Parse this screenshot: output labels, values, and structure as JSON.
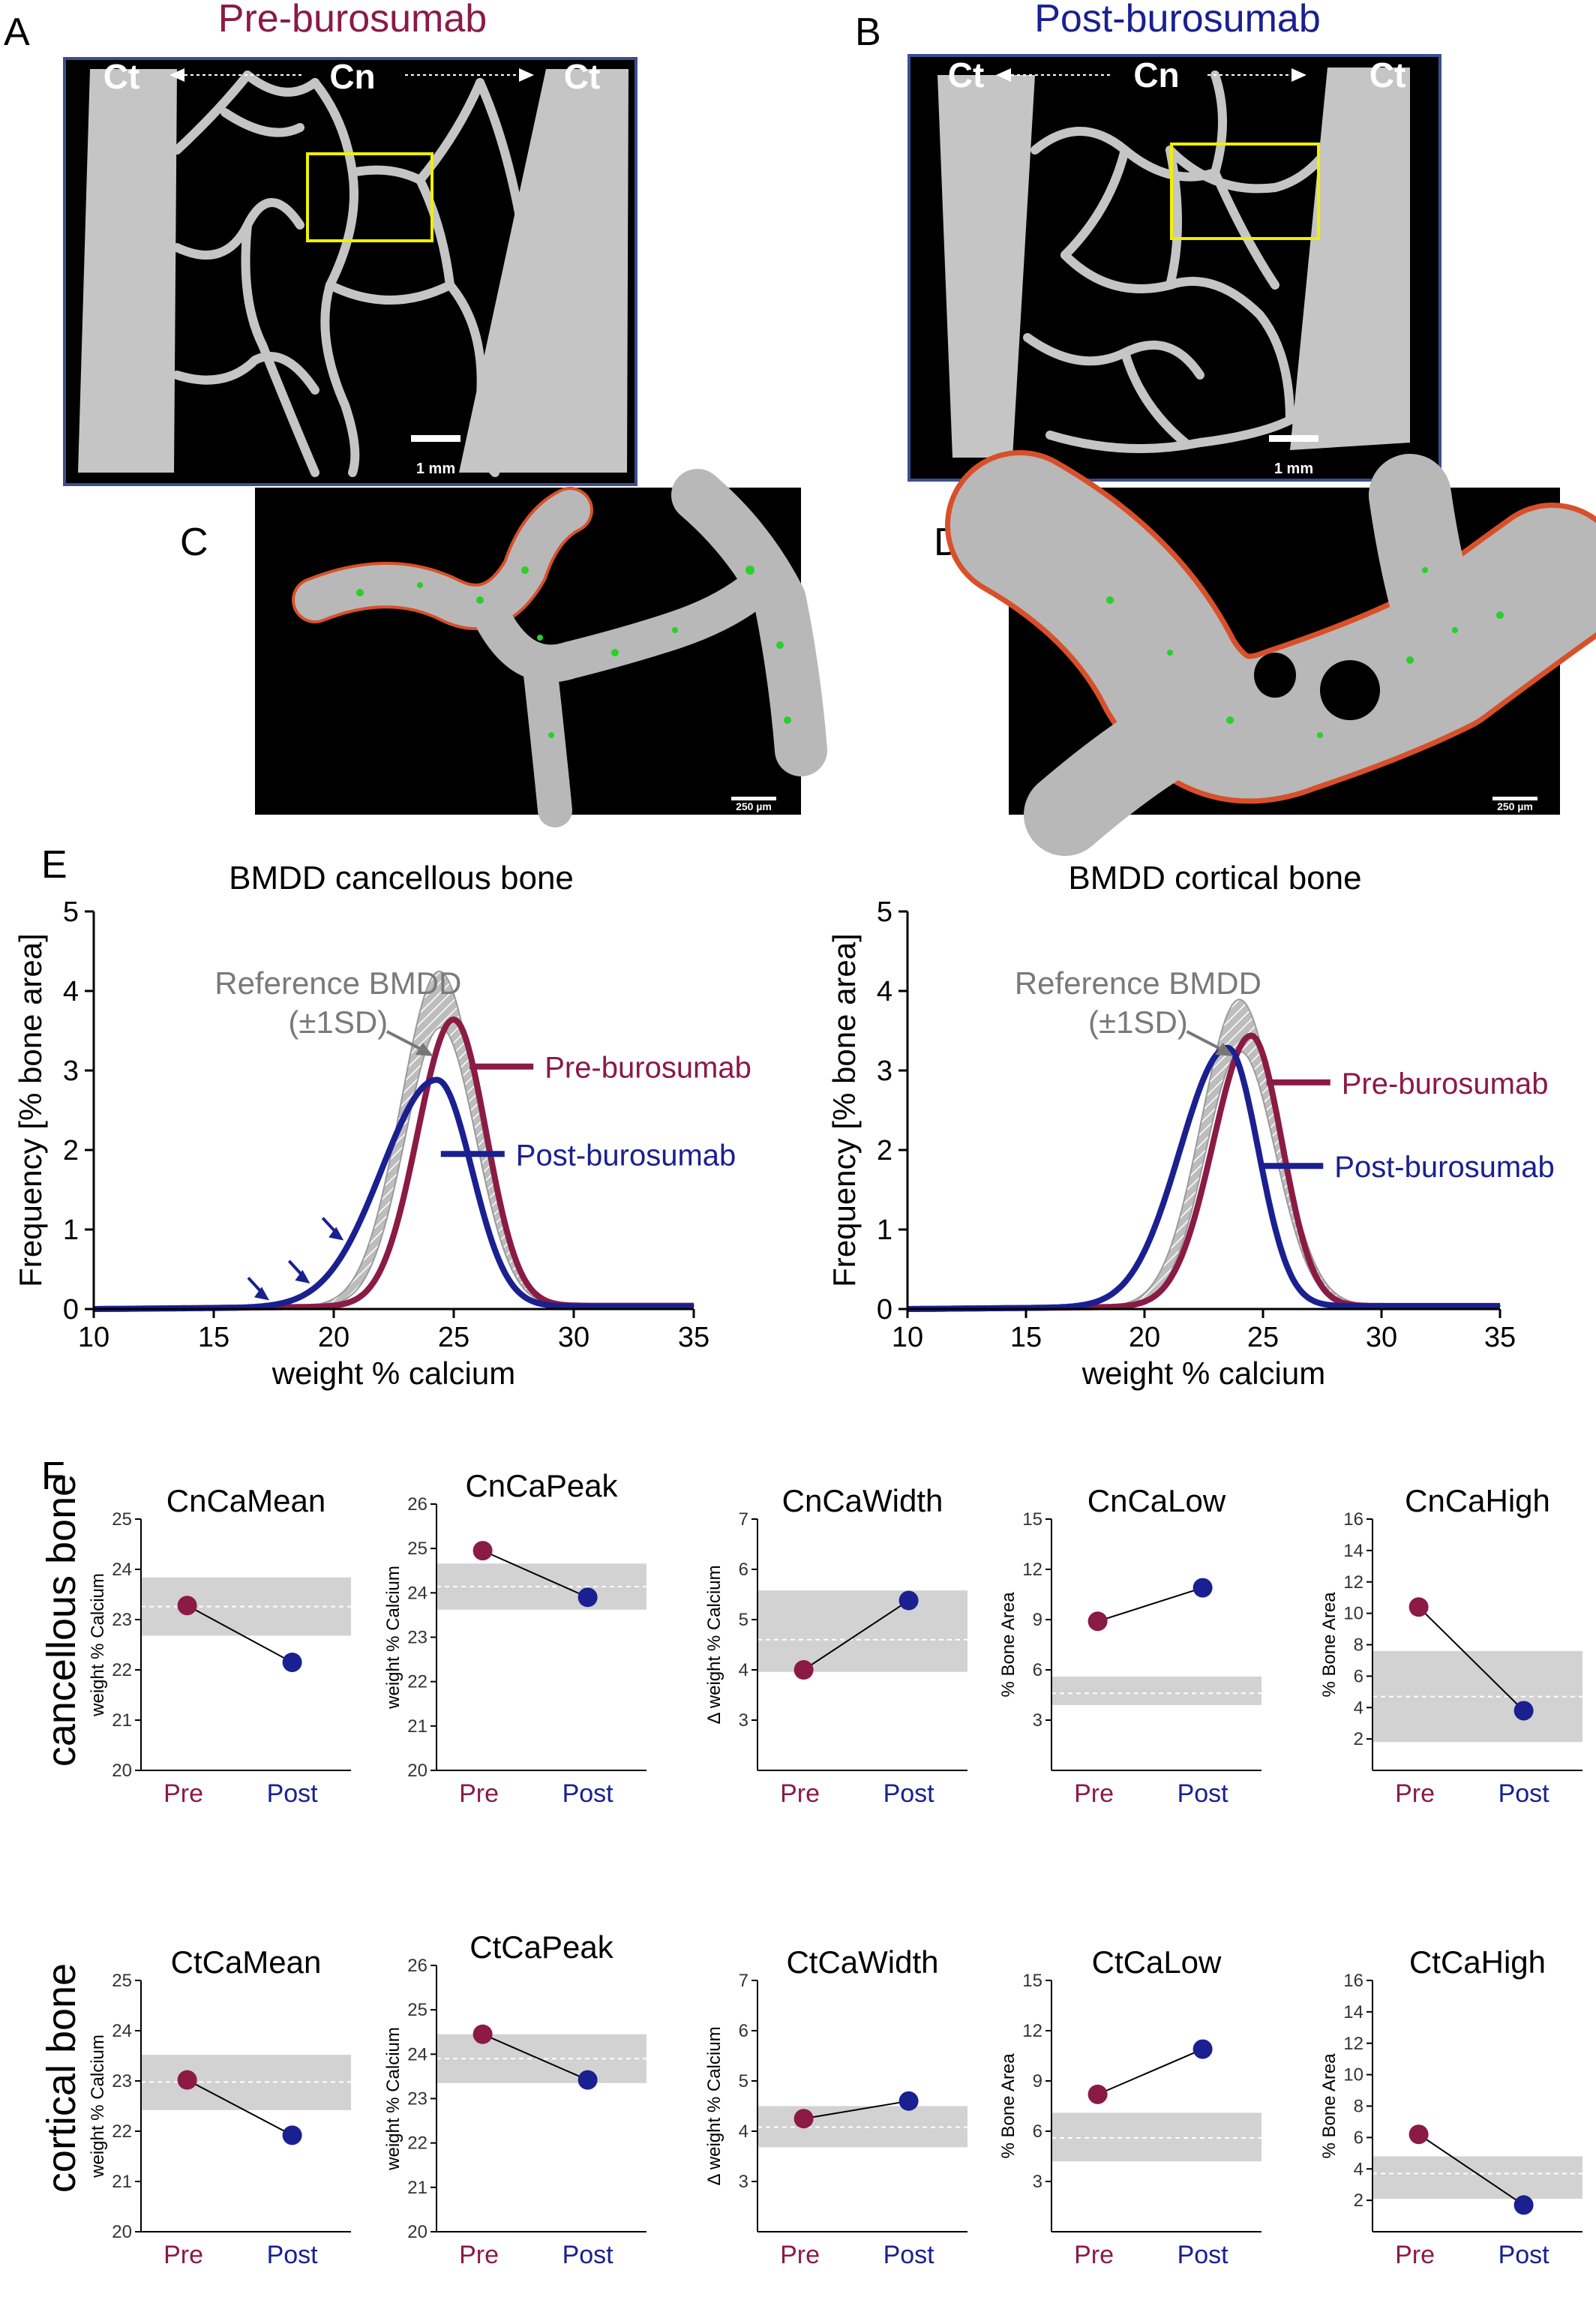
{
  "colors": {
    "pre": "#8b1a45",
    "post": "#1a2090",
    "ref": "#b8b8b8",
    "band": "#d2d2d2",
    "image_border": "#3b4f8f",
    "box": "#f0f000"
  },
  "panels": {
    "A": {
      "letter": "A",
      "title": "Pre-burosumab",
      "left_label": "Ct",
      "center_label": "Cn",
      "right_label": "Ct",
      "scale": "1 mm"
    },
    "B": {
      "letter": "B",
      "title": "Post-burosumab",
      "left_label": "Ct",
      "center_label": "Cn",
      "right_label": "Ct",
      "scale": "1 mm"
    },
    "C": {
      "letter": "C",
      "scale": "250 µm"
    },
    "D": {
      "letter": "D",
      "scale": "250 µm"
    },
    "E": {
      "letter": "E"
    },
    "F": {
      "letter": "F",
      "row_cancellous": "cancellous bone",
      "row_cortical": "cortical bone"
    }
  },
  "chart_data": [
    {
      "type": "line",
      "title": "BMDD cancellous bone",
      "xlabel": "weight % calcium",
      "ylabel": "Frequency [% bone area]",
      "xlim": [
        10,
        35
      ],
      "ylim": [
        0,
        5
      ],
      "xticks": [
        "10",
        "15",
        "20",
        "25",
        "30",
        "35"
      ],
      "yticks": [
        "0",
        "1",
        "2",
        "3",
        "4",
        "5"
      ],
      "reference_label": [
        "Reference BMDD",
        "(±1SD)"
      ],
      "reference_band": {
        "center": 24.4,
        "sd": 1.6,
        "peak_upper": 4.2,
        "peak_lower": 3.5
      },
      "series": [
        {
          "name": "Pre-burosumab",
          "center": 25.0,
          "sd_left": 1.5,
          "sd_right": 1.35,
          "peak": 3.6
        },
        {
          "name": "Post-burosumab",
          "center": 24.3,
          "sd_left": 2.3,
          "sd_right": 1.45,
          "peak": 2.85
        }
      ],
      "arrows_at_x": [
        17.5,
        19.2,
        20.6
      ]
    },
    {
      "type": "line",
      "title": "BMDD cortical bone",
      "xlabel": "weight % calcium",
      "ylabel": "Frequency [% bone area]",
      "xlim": [
        10,
        35
      ],
      "ylim": [
        0,
        5
      ],
      "xticks": [
        "10",
        "15",
        "20",
        "25",
        "30",
        "35"
      ],
      "yticks": [
        "0",
        "1",
        "2",
        "3",
        "4",
        "5"
      ],
      "reference_label": [
        "Reference BMDD",
        "(±1SD)"
      ],
      "reference_band": {
        "center": 24.0,
        "sd": 1.6,
        "peak_upper": 3.85,
        "peak_lower": 3.2
      },
      "series": [
        {
          "name": "Pre-burosumab",
          "center": 24.5,
          "sd_left": 1.6,
          "sd_right": 1.3,
          "peak": 3.4
        },
        {
          "name": "Post-burosumab",
          "center": 23.5,
          "sd_left": 2.0,
          "sd_right": 1.3,
          "peak": 3.25
        }
      ]
    },
    {
      "type": "scatter",
      "title": "CnCaMean",
      "ylabel": "weight % Calcium",
      "categories": [
        "Pre",
        "Post"
      ],
      "values": [
        23.28,
        22.15
      ],
      "ref_mean": 23.26,
      "ref_band": [
        22.68,
        23.84
      ],
      "ylim": [
        20,
        25
      ],
      "yticks": [
        "20",
        "21",
        "22",
        "23",
        "24",
        "25"
      ]
    },
    {
      "type": "scatter",
      "title": "CnCaPeak",
      "ylabel": "weight % Calcium",
      "categories": [
        "Pre",
        "Post"
      ],
      "values": [
        24.95,
        23.9
      ],
      "ref_mean": 24.14,
      "ref_band": [
        23.62,
        24.66
      ],
      "ylim": [
        20,
        26
      ],
      "yticks": [
        "20",
        "21",
        "22",
        "23",
        "24",
        "25",
        "26"
      ]
    },
    {
      "type": "scatter",
      "title": "CnCaWidth",
      "ylabel": "Δ weight % Calcium",
      "categories": [
        "Pre",
        "Post"
      ],
      "values": [
        4.0,
        5.38
      ],
      "ref_mean": 4.6,
      "ref_band": [
        3.96,
        5.58
      ],
      "ylim": [
        2,
        7
      ],
      "yticks": [
        "3",
        "4",
        "5",
        "6",
        "7"
      ]
    },
    {
      "type": "scatter",
      "title": "CnCaLow",
      "ylabel": "% Bone Area",
      "categories": [
        "Pre",
        "Post"
      ],
      "values": [
        8.9,
        10.9
      ],
      "ref_mean": 4.6,
      "ref_band": [
        3.9,
        5.6
      ],
      "ylim": [
        0,
        15
      ],
      "yticks": [
        "3",
        "6",
        "9",
        "12",
        "15"
      ]
    },
    {
      "type": "scatter",
      "title": "CnCaHigh",
      "ylabel": "% Bone Area",
      "categories": [
        "Pre",
        "Post"
      ],
      "values": [
        10.4,
        3.8
      ],
      "ref_mean": 4.7,
      "ref_band": [
        1.8,
        7.6
      ],
      "ylim": [
        0,
        16
      ],
      "yticks": [
        "2",
        "4",
        "6",
        "8",
        "10",
        "12",
        "14",
        "16"
      ]
    },
    {
      "type": "scatter",
      "title": "CtCaMean",
      "ylabel": "weight % Calcium",
      "categories": [
        "Pre",
        "Post"
      ],
      "values": [
        23.02,
        21.92
      ],
      "ref_mean": 22.98,
      "ref_band": [
        22.42,
        23.52
      ],
      "ylim": [
        20,
        25
      ],
      "yticks": [
        "20",
        "21",
        "22",
        "23",
        "24",
        "25"
      ]
    },
    {
      "type": "scatter",
      "title": "CtCaPeak",
      "ylabel": "weight % Calcium",
      "categories": [
        "Pre",
        "Post"
      ],
      "values": [
        24.45,
        23.42
      ],
      "ref_mean": 23.9,
      "ref_band": [
        23.35,
        24.45
      ],
      "ylim": [
        20,
        26
      ],
      "yticks": [
        "20",
        "21",
        "22",
        "23",
        "24",
        "25",
        "26"
      ]
    },
    {
      "type": "scatter",
      "title": "CtCaWidth",
      "ylabel": "Δ weight % Calcium",
      "categories": [
        "Pre",
        "Post"
      ],
      "values": [
        4.25,
        4.6
      ],
      "ref_mean": 4.08,
      "ref_band": [
        3.68,
        4.5
      ],
      "ylim": [
        2,
        7
      ],
      "yticks": [
        "3",
        "4",
        "5",
        "6",
        "7"
      ]
    },
    {
      "type": "scatter",
      "title": "CtCaLow",
      "ylabel": "% Bone Area",
      "categories": [
        "Pre",
        "Post"
      ],
      "values": [
        8.2,
        10.9
      ],
      "ref_mean": 5.6,
      "ref_band": [
        4.2,
        7.1
      ],
      "ylim": [
        0,
        15
      ],
      "yticks": [
        "3",
        "6",
        "9",
        "12",
        "15"
      ]
    },
    {
      "type": "scatter",
      "title": "CtCaHigh",
      "ylabel": "% Bone Area",
      "categories": [
        "Pre",
        "Post"
      ],
      "values": [
        6.2,
        1.7
      ],
      "ref_mean": 3.7,
      "ref_band": [
        2.1,
        4.8
      ],
      "ylim": [
        0,
        16
      ],
      "yticks": [
        "2",
        "4",
        "6",
        "8",
        "10",
        "12",
        "14",
        "16"
      ]
    }
  ]
}
